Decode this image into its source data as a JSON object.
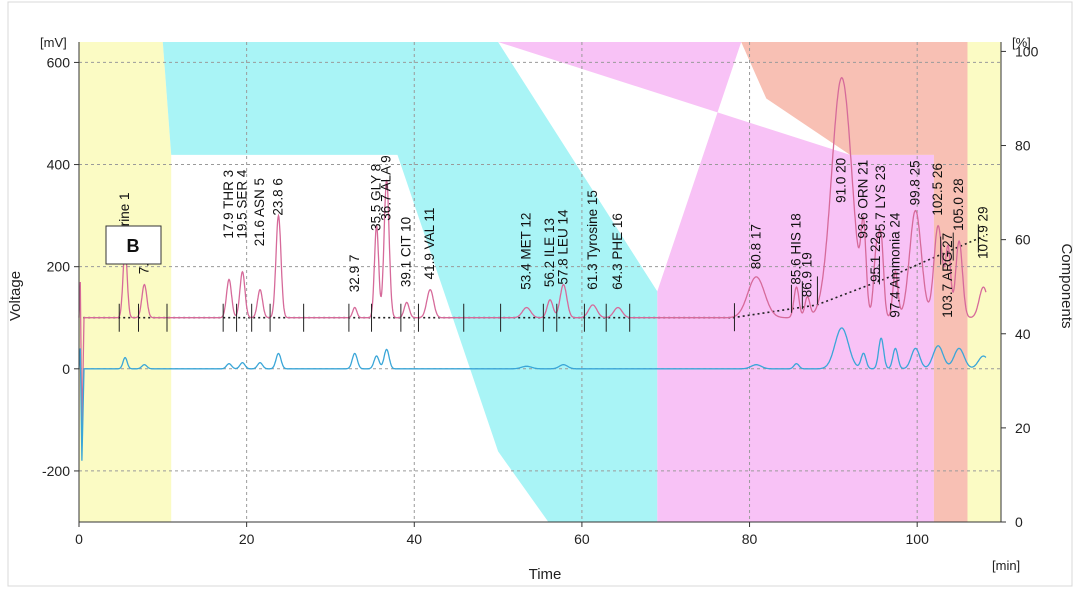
{
  "colors": {
    "background": "#ffffff",
    "outer_frame": "#d8d8d8",
    "region_yellow": "#fbfbc4",
    "region_cyan": "#a9f4f6",
    "region_magenta": "#f8c2f6",
    "region_salmon": "#f8c0b4",
    "trace_primary": "#d66a9a",
    "trace_secondary": "#3aa6d8",
    "baseline": "#222222",
    "grid": "#9a9a9a",
    "axis": "#333333"
  },
  "panel_label": "B",
  "chart_data": {
    "type": "line",
    "title": "",
    "xlabel": "Time",
    "x_unit": "[min]",
    "ylabel": "Voltage",
    "y_unit": "[mV]",
    "y2label": "Components",
    "y2_unit": "[%]",
    "xlim": [
      0,
      110
    ],
    "ylim": [
      -300,
      640
    ],
    "y2lim": [
      0,
      102
    ],
    "x_ticks": [
      0,
      20,
      40,
      60,
      80,
      100
    ],
    "y_ticks": [
      -200,
      0,
      200,
      400,
      600
    ],
    "y2_ticks": [
      0,
      20,
      40,
      60,
      80,
      100
    ],
    "grid": true,
    "background_regions": [
      {
        "color": "region_yellow",
        "points": [
          [
            0,
            102
          ],
          [
            10,
            102
          ],
          [
            11,
            78
          ],
          [
            11,
            0
          ],
          [
            0,
            0
          ]
        ]
      },
      {
        "color": "region_cyan",
        "points": [
          [
            10,
            102
          ],
          [
            50,
            102
          ],
          [
            69,
            49
          ],
          [
            69,
            0
          ],
          [
            56,
            0
          ],
          [
            50,
            15
          ],
          [
            38,
            78
          ],
          [
            11,
            78
          ]
        ]
      },
      {
        "color": "region_magenta",
        "points": [
          [
            50,
            102
          ],
          [
            79,
            102
          ],
          [
            69,
            49
          ],
          [
            69,
            0
          ],
          [
            102,
            0
          ],
          [
            102,
            78
          ],
          [
            92,
            78
          ]
        ]
      },
      {
        "color": "region_salmon",
        "points": [
          [
            79,
            102
          ],
          [
            106,
            102
          ],
          [
            106,
            0
          ],
          [
            102,
            0
          ],
          [
            102,
            78
          ],
          [
            92,
            78
          ],
          [
            82,
            90
          ]
        ]
      },
      {
        "color": "region_yellow",
        "points": [
          [
            106,
            102
          ],
          [
            110,
            102
          ],
          [
            110,
            0
          ],
          [
            106,
            0
          ]
        ]
      }
    ],
    "series": [
      {
        "role": "primary",
        "baseline": 100,
        "peaks": [
          [
            5.5,
            135,
            0.25
          ],
          [
            7.8,
            65,
            0.3
          ],
          [
            17.9,
            75,
            0.3
          ],
          [
            19.5,
            90,
            0.3
          ],
          [
            21.6,
            55,
            0.3
          ],
          [
            23.8,
            200,
            0.3
          ],
          [
            32.9,
            20,
            0.25
          ],
          [
            35.5,
            180,
            0.25
          ],
          [
            36.7,
            270,
            0.3
          ],
          [
            39.1,
            30,
            0.3
          ],
          [
            41.9,
            55,
            0.4
          ],
          [
            53.4,
            20,
            0.5
          ],
          [
            56.2,
            35,
            0.35
          ],
          [
            57.8,
            65,
            0.4
          ],
          [
            61.3,
            25,
            0.5
          ],
          [
            64.3,
            20,
            0.5
          ],
          [
            80.8,
            80,
            1.0
          ],
          [
            85.6,
            60,
            0.3
          ],
          [
            86.9,
            40,
            0.3
          ],
          [
            91.0,
            470,
            1.2
          ],
          [
            93.6,
            150,
            0.3
          ],
          [
            95.1,
            120,
            0.3
          ],
          [
            95.7,
            150,
            0.3
          ],
          [
            97.4,
            90,
            0.3
          ],
          [
            99.8,
            210,
            0.7
          ],
          [
            102.5,
            180,
            0.5
          ],
          [
            103.7,
            130,
            0.3
          ],
          [
            105.0,
            150,
            0.4
          ],
          [
            107.9,
            60,
            0.5
          ]
        ]
      },
      {
        "role": "secondary",
        "baseline": 0,
        "peaks": [
          [
            5.5,
            22,
            0.25
          ],
          [
            7.8,
            8,
            0.3
          ],
          [
            17.9,
            10,
            0.3
          ],
          [
            19.5,
            12,
            0.3
          ],
          [
            21.6,
            12,
            0.3
          ],
          [
            23.8,
            30,
            0.3
          ],
          [
            32.9,
            30,
            0.3
          ],
          [
            35.5,
            25,
            0.3
          ],
          [
            36.7,
            38,
            0.3
          ],
          [
            53.4,
            5,
            0.6
          ],
          [
            57.8,
            8,
            0.5
          ],
          [
            80.8,
            8,
            0.6
          ],
          [
            85.6,
            10,
            0.3
          ],
          [
            91.0,
            80,
            0.8
          ],
          [
            93.6,
            30,
            0.3
          ],
          [
            95.7,
            60,
            0.3
          ],
          [
            97.4,
            40,
            0.3
          ],
          [
            99.8,
            40,
            0.5
          ],
          [
            102.5,
            45,
            0.6
          ],
          [
            105.0,
            40,
            0.6
          ],
          [
            107.9,
            25,
            0.6
          ]
        ]
      }
    ],
    "baseline_segments": [
      [
        [
          0.5,
          100
        ],
        [
          78,
          100
        ]
      ],
      [
        [
          78,
          100
        ],
        [
          88,
          125
        ],
        [
          96,
          175
        ],
        [
          103,
          225
        ],
        [
          108,
          260
        ]
      ]
    ],
    "peak_labels": [
      {
        "x": 5.5,
        "y": 215,
        "text": "5 Taurine  1"
      },
      {
        "x": 7.8,
        "y": 185,
        "text": "7.    a  2"
      },
      {
        "x": 17.9,
        "y": 255,
        "text": "17.9 THR  3"
      },
      {
        "x": 19.5,
        "y": 255,
        "text": "19.5 SER  4"
      },
      {
        "x": 21.6,
        "y": 240,
        "text": "21.6 ASN  5"
      },
      {
        "x": 23.8,
        "y": 300,
        "text": "23.8    6"
      },
      {
        "x": 32.9,
        "y": 150,
        "text": "32.9    7"
      },
      {
        "x": 35.5,
        "y": 270,
        "text": "35.5 GLY  8"
      },
      {
        "x": 36.7,
        "y": 290,
        "text": "36.7 ALA  9"
      },
      {
        "x": 39.1,
        "y": 160,
        "text": "39.1 CIT  10"
      },
      {
        "x": 41.9,
        "y": 175,
        "text": "41.9 VAL  11"
      },
      {
        "x": 53.4,
        "y": 155,
        "text": "53.4 MET  12"
      },
      {
        "x": 56.2,
        "y": 160,
        "text": "56.2 ILE  13"
      },
      {
        "x": 57.8,
        "y": 165,
        "text": "57.8 LEU  14"
      },
      {
        "x": 61.3,
        "y": 155,
        "text": "61.3 Tyrosine  15"
      },
      {
        "x": 64.3,
        "y": 155,
        "text": "64.3 PHE  16"
      },
      {
        "x": 80.8,
        "y": 195,
        "text": "80.8     17"
      },
      {
        "x": 85.6,
        "y": 165,
        "text": "85.6 HIS  18"
      },
      {
        "x": 86.9,
        "y": 140,
        "text": "86.9  19"
      },
      {
        "x": 91.0,
        "y": 325,
        "text": "91.0     20"
      },
      {
        "x": 93.6,
        "y": 255,
        "text": "93.6 ORN  21"
      },
      {
        "x": 95.1,
        "y": 170,
        "text": "95.1  22"
      },
      {
        "x": 95.7,
        "y": 255,
        "text": "95.7 LYS  23"
      },
      {
        "x": 97.4,
        "y": 100,
        "text": "97.4 Ammonia  24"
      },
      {
        "x": 99.8,
        "y": 320,
        "text": "99.8  25"
      },
      {
        "x": 102.5,
        "y": 300,
        "text": "102.5  26"
      },
      {
        "x": 103.7,
        "y": 100,
        "text": "103.7 ARG  27"
      },
      {
        "x": 105.0,
        "y": 270,
        "text": "105.0  28"
      },
      {
        "x": 107.9,
        "y": 215,
        "text": "107.9  29"
      }
    ]
  }
}
